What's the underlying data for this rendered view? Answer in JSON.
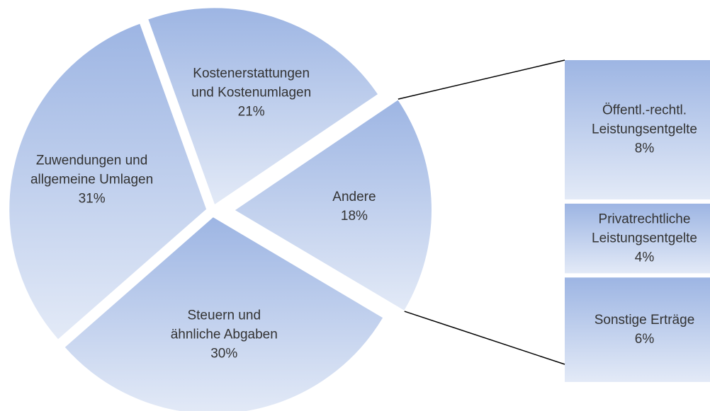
{
  "chart_data": {
    "type": "bar-of-pie",
    "categories": [
      "Kostenerstattungen\nund Kostenumlagen",
      "Andere",
      "Steuern und\nähnliche Abgaben",
      "Zuwendungen und\nallgemeine Umlagen"
    ],
    "values": [
      21,
      18,
      30,
      31
    ],
    "value_labels": [
      "21%",
      "18%",
      "30%",
      "31%"
    ],
    "gradient": [
      "#9db5e3",
      "#e3eaf7"
    ],
    "breakdown": {
      "categories": [
        "Öffentl.-rechtl.\nLeistungsentgelte",
        "Privatrechtliche\nLeistungsentgelte",
        "Sonstige Erträge"
      ],
      "values": [
        8,
        4,
        6
      ],
      "value_labels": [
        "8%",
        "4%",
        "6%"
      ]
    }
  }
}
